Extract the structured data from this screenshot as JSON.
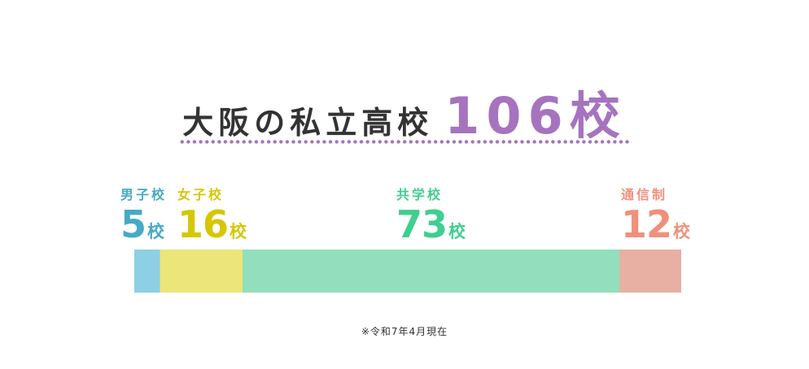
{
  "chart_data": {
    "type": "bar",
    "orientation": "horizontal-stacked",
    "title_main": "大阪の私立高校",
    "title_total": "106",
    "unit": "校",
    "categories": [
      "男子校",
      "女子校",
      "共学校",
      "通信制"
    ],
    "values": [
      5,
      16,
      73,
      12
    ],
    "label_colors": [
      "#46a9c6",
      "#d6c700",
      "#3fcf8f",
      "#f0907c"
    ],
    "bar_colors": [
      "#8dcfe5",
      "#ece67a",
      "#93dfbd",
      "#e8b0a3"
    ],
    "accent_color": "#a673bf",
    "note": "※令和7年4月現在"
  }
}
